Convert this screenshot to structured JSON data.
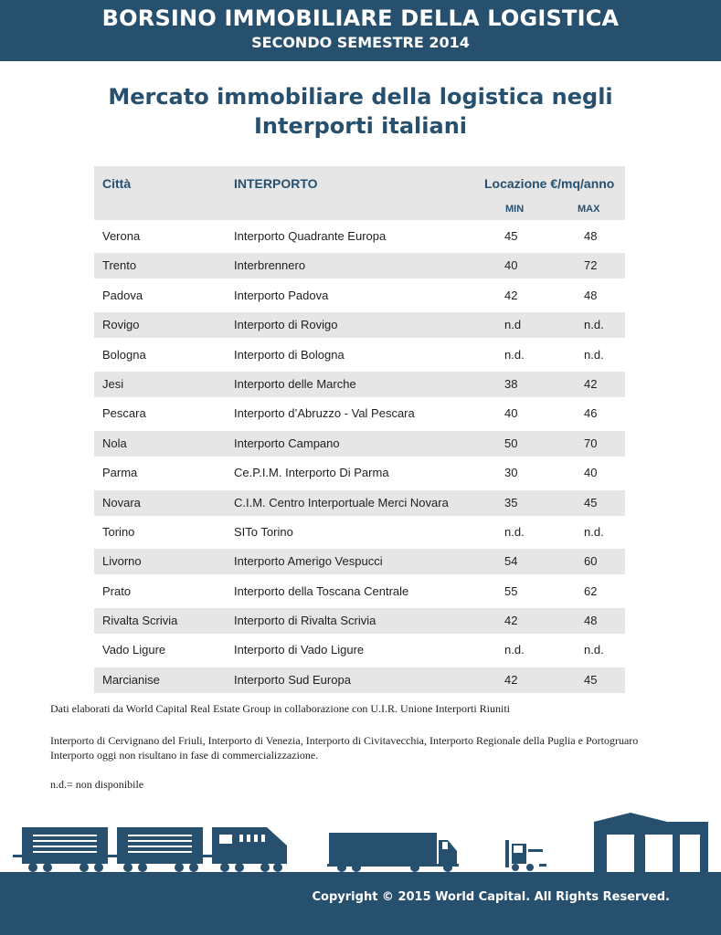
{
  "header": {
    "title": "BORSINO IMMOBILIARE DELLA LOGISTICA",
    "subtitle": "SECONDO SEMESTRE 2014"
  },
  "headline": {
    "line1": "Mercato immobiliare della logistica negli",
    "line2": "Interporti italiani"
  },
  "table": {
    "col_city": "Città",
    "col_interporto": "INTERPORTO",
    "col_location": "Locazione €/mq/anno",
    "col_min": "MIN",
    "col_max": "MAX",
    "rows": [
      {
        "city": "Verona",
        "interporto": "Interporto Quadrante Europa",
        "min": "45",
        "max": "48"
      },
      {
        "city": "Trento",
        "interporto": "Interbrennero",
        "min": "40",
        "max": "72"
      },
      {
        "city": "Padova",
        "interporto": "Interporto Padova",
        "min": "42",
        "max": "48"
      },
      {
        "city": "Rovigo",
        "interporto": "Interporto di Rovigo",
        "min": "n.d",
        "max": "n.d."
      },
      {
        "city": "Bologna",
        "interporto": "Interporto di Bologna",
        "min": "n.d.",
        "max": "n.d."
      },
      {
        "city": "Jesi",
        "interporto": "Interporto delle Marche",
        "min": "38",
        "max": "42"
      },
      {
        "city": "Pescara",
        "interporto": "Interporto d’Abruzzo - Val Pescara",
        "min": "40",
        "max": "46"
      },
      {
        "city": "Nola",
        "interporto": "Interporto Campano",
        "min": "50",
        "max": "70"
      },
      {
        "city": "Parma",
        "interporto": "Ce.P.I.M. Interporto Di Parma",
        "min": "30",
        "max": "40"
      },
      {
        "city": "Novara",
        "interporto": "C.I.M. Centro Interportuale Merci Novara",
        "min": "35",
        "max": "45"
      },
      {
        "city": "Torino",
        "interporto": "SITo  Torino",
        "min": "n.d.",
        "max": "n.d."
      },
      {
        "city": "Livorno",
        "interporto": "Interporto Amerigo Vespucci",
        "min": "54",
        "max": "60"
      },
      {
        "city": "Prato",
        "interporto": "Interporto della Toscana Centrale",
        "min": "55",
        "max": "62"
      },
      {
        "city": "Rivalta Scrivia",
        "interporto": "Interporto di Rivalta Scrivia",
        "min": "42",
        "max": "48"
      },
      {
        "city": "Vado Ligure",
        "interporto": "Interporto di Vado Ligure",
        "min": "n.d.",
        "max": "n.d."
      },
      {
        "city": "Marcianise",
        "interporto": "Interporto Sud Europa",
        "min": "42",
        "max": "45"
      }
    ]
  },
  "notes": {
    "source": "Dati elaborati da World Capital Real Estate Group in collaborazione con U.I.R. Unione Interporti Riuniti",
    "excluded": "Interporto di Cervignano del Friuli, Interporto di Venezia, Interporto di Civitavecchia, Interporto Regionale della Puglia e Portogruaro Interporto oggi non risultano in fase di commercializzazione.",
    "legend": "n.d.= non disponibile"
  },
  "footer": {
    "copyright": "Copyright © 2015 World Capital. All Rights Reserved."
  },
  "colors": {
    "brand": "#27506f",
    "row_shade": "#e6e6e6"
  },
  "icons": [
    "train-icon",
    "truck-icon",
    "forklift-icon",
    "warehouse-icon"
  ]
}
